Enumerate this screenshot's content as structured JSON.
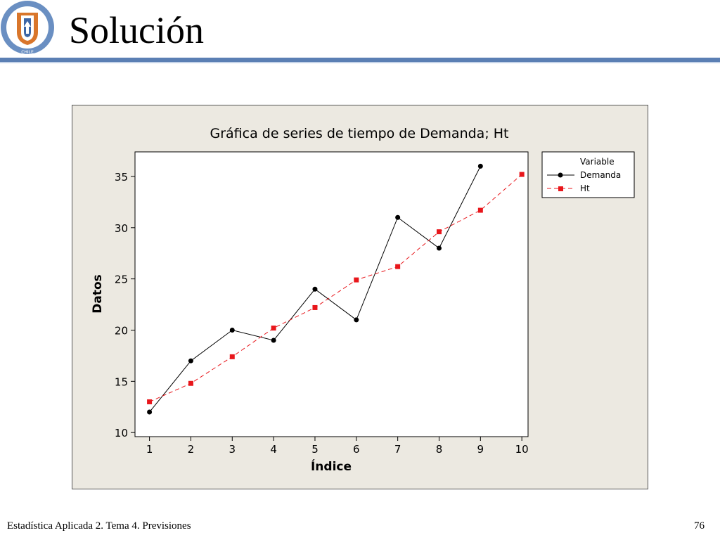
{
  "slide": {
    "title": "Solución",
    "footer_text": "Estadística Aplicada 2. Tema 4. Previsiones",
    "page_number": "76",
    "logo_text": "UNIVERSIDAD CATÓLICA DEL NORTE · CHILE",
    "accent_color": "#5b7fb4"
  },
  "chart_data": {
    "type": "line",
    "title": "Gráfica de series de tiempo de Demanda; Ht",
    "xlabel": "Índice",
    "ylabel": "Datos",
    "x": [
      1,
      2,
      3,
      4,
      5,
      6,
      7,
      8,
      9,
      10
    ],
    "xlim": [
      0.65,
      10.15
    ],
    "ylim": [
      9.6,
      37.4
    ],
    "yticks": [
      10,
      15,
      20,
      25,
      30,
      35
    ],
    "legend_title": "Variable",
    "legend_position": "right",
    "grid": false,
    "series": [
      {
        "name": "Demanda",
        "color": "#000000",
        "marker": "circle",
        "line": "solid",
        "x": [
          1,
          2,
          3,
          4,
          5,
          6,
          7,
          8,
          9
        ],
        "values": [
          12,
          17,
          20,
          19,
          24,
          21,
          31,
          28,
          36
        ]
      },
      {
        "name": "Ht",
        "color": "#e8161b",
        "marker": "square",
        "line": "dashed",
        "x": [
          1,
          2,
          3,
          4,
          5,
          6,
          7,
          8,
          9,
          10
        ],
        "values": [
          13,
          14.8,
          17.4,
          20.2,
          22.2,
          24.9,
          26.2,
          29.6,
          31.7,
          35.2
        ]
      }
    ]
  }
}
